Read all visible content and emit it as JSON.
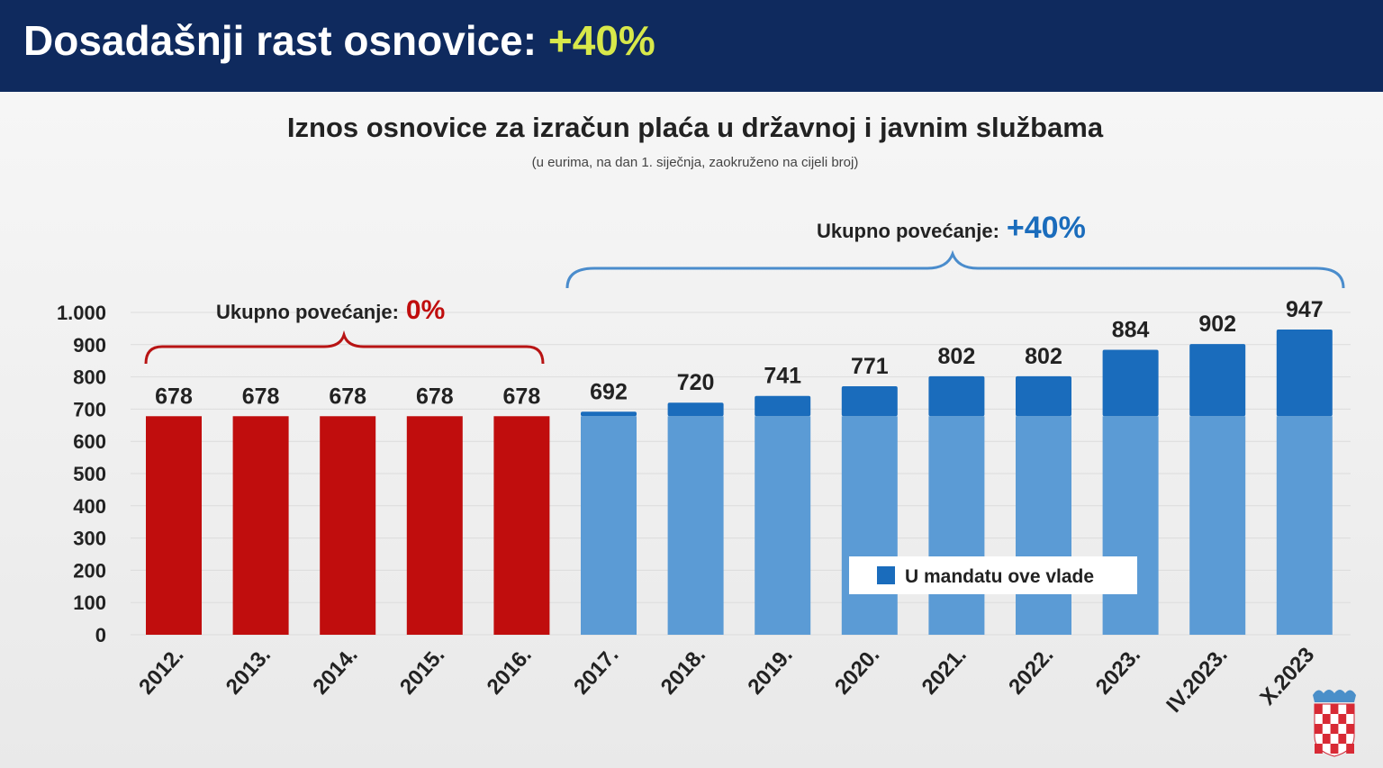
{
  "header": {
    "title": "Dosadašnji rast osnovice:",
    "highlight": "+40%"
  },
  "colors": {
    "navy": "#0f2a5e",
    "red": "#c00d0d",
    "light_blue": "#5b9bd5",
    "dark_blue": "#1a6cbc",
    "highlight": "#d8e84a"
  },
  "chart_data": {
    "type": "bar",
    "title": "Iznos osnovice za izračun plaća u državnoj i javnim službama",
    "subtitle": "(u eurima, na dan 1. siječnja, zaokruženo na cijeli broj)",
    "categories": [
      "2012.",
      "2013.",
      "2014.",
      "2015.",
      "2016.",
      "2017.",
      "2018.",
      "2019.",
      "2020.",
      "2021.",
      "2022.",
      "2023.",
      "IV.2023.",
      "X.2023"
    ],
    "values": [
      678,
      678,
      678,
      678,
      678,
      692,
      720,
      741,
      771,
      802,
      802,
      884,
      902,
      947
    ],
    "value_labels": [
      "678",
      "678",
      "678",
      "678",
      "678",
      "692",
      "720",
      "741",
      "771",
      "802",
      "802",
      "884",
      "902",
      "947"
    ],
    "base_value": 678,
    "red_count": 5,
    "ylim": [
      0,
      1000
    ],
    "yticks": [
      0,
      100,
      200,
      300,
      400,
      500,
      600,
      700,
      800,
      900,
      1000
    ],
    "ytick_labels": [
      "0",
      "100",
      "200",
      "300",
      "400",
      "500",
      "600",
      "700",
      "800",
      "900",
      "1.000"
    ],
    "grid": true,
    "legend": {
      "label": "U mandatu ove vlade",
      "placement": "bottom-right"
    },
    "annotations": [
      {
        "text": "Ukupno povećanje:",
        "value": "0%"
      },
      {
        "text": "Ukupno povećanje:",
        "value": "+40%"
      }
    ]
  }
}
